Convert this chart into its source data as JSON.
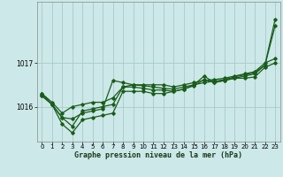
{
  "title": "Graphe pression niveau de la mer (hPa)",
  "background_color": "#cce8e8",
  "grid_color": "#aacaca",
  "line_color": "#1a5c1a",
  "ylim": [
    1015.2,
    1018.4
  ],
  "yticks": [
    1016,
    1017
  ],
  "xlim": [
    -0.5,
    23.5
  ],
  "xticks": [
    0,
    1,
    2,
    3,
    4,
    5,
    6,
    7,
    8,
    9,
    10,
    11,
    12,
    13,
    14,
    15,
    16,
    17,
    18,
    19,
    20,
    21,
    22,
    23
  ],
  "series": [
    [
      1016.3,
      1016.1,
      1015.85,
      1016.0,
      1016.05,
      1016.1,
      1016.1,
      1016.2,
      1016.45,
      1016.5,
      1016.5,
      1016.5,
      1016.5,
      1016.45,
      1016.5,
      1016.55,
      1016.6,
      1016.62,
      1016.65,
      1016.7,
      1016.75,
      1016.8,
      1017.0,
      1017.1
    ],
    [
      1016.25,
      1016.05,
      1015.75,
      1015.72,
      1015.85,
      1015.9,
      1015.95,
      1016.6,
      1016.55,
      1016.5,
      1016.48,
      1016.45,
      1016.42,
      1016.4,
      1016.45,
      1016.5,
      1016.55,
      1016.58,
      1016.62,
      1016.68,
      1016.73,
      1016.78,
      1016.95,
      1017.85
    ],
    [
      1016.3,
      1016.05,
      1015.6,
      1015.4,
      1015.7,
      1015.75,
      1015.8,
      1015.85,
      1016.35,
      1016.35,
      1016.35,
      1016.3,
      1016.3,
      1016.35,
      1016.4,
      1016.5,
      1016.7,
      1016.55,
      1016.6,
      1016.65,
      1016.65,
      1016.68,
      1016.9,
      1017.0
    ],
    [
      1016.25,
      1016.05,
      1015.75,
      1015.55,
      1015.9,
      1015.95,
      1016.0,
      1016.05,
      1016.45,
      1016.45,
      1016.42,
      1016.38,
      1016.38,
      1016.35,
      1016.4,
      1016.48,
      1016.62,
      1016.55,
      1016.6,
      1016.65,
      1016.7,
      1016.75,
      1016.95,
      1018.0
    ]
  ]
}
